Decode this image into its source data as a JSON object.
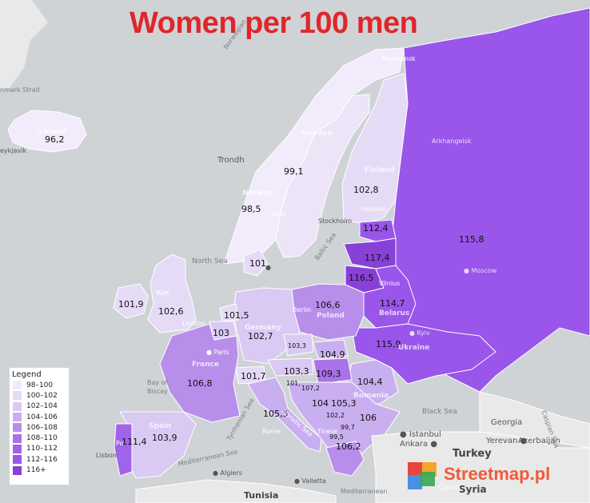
{
  "title": "Women per 100 men",
  "legend": {
    "title": "Legend",
    "classes": [
      {
        "label": "98–100",
        "color": "#f1ebfb"
      },
      {
        "label": "100–102",
        "color": "#e6dbf7"
      },
      {
        "label": "102–104",
        "color": "#dac9f3"
      },
      {
        "label": "104–106",
        "color": "#c9aff0"
      },
      {
        "label": "106–108",
        "color": "#b88eeb"
      },
      {
        "label": "108–110",
        "color": "#a972ea"
      },
      {
        "label": "110–112",
        "color": "#a063ea"
      },
      {
        "label": "112–116",
        "color": "#9a55ea"
      },
      {
        "label": "116+",
        "color": "#8840d9"
      }
    ]
  },
  "values": {
    "iceland": "96,2",
    "sweden": "99,1",
    "norway": "98,5",
    "finland": "102,8",
    "russia": "115,8",
    "estonia": "112,4",
    "latvia": "117,4",
    "lithuania": "116,5",
    "denmark": "101",
    "ireland": "101,9",
    "uk": "102,6",
    "netherlands": "101,5",
    "belgium": "103",
    "germany": "102,7",
    "poland": "106,6",
    "belarus": "114,7",
    "ukraine": "115,9",
    "czechia": "103,3",
    "slovakia": "104,9",
    "austria": "103,3",
    "hungary": "109,3",
    "slovenia": "101,",
    "croatia": "107,2",
    "moldova": "104,4",
    "france": "106,8",
    "switzerland": "101,7",
    "italy": "105,5",
    "bosnia": "104",
    "serbia": "105,3",
    "montenegro": "102,2",
    "romania_bulgaria": "106",
    "kosovo": "99,7",
    "albania": "99,5",
    "greece": "106,2",
    "spain": "103,9",
    "portugal": "111,4"
  },
  "countries": {
    "iceland": "Iceland",
    "sweden": "Sweden",
    "norway": "Norway",
    "finland": "Finland",
    "poland": "Poland",
    "germany": "Germany",
    "france": "France",
    "spain": "Spain",
    "belarus": "Belarus",
    "ukraine": "Ukraine",
    "romania": "Romania",
    "kingdom": "Kin"
  },
  "places": {
    "reykjavik": "eykjavík",
    "trondheim": "Trondh",
    "oslo": "Oslo",
    "stockholm": "Stockholm",
    "helsinki": "Helsinki",
    "murmansk": "Murmansk",
    "arkhangelsk": "Arkhangelsk",
    "moscow": "● Moscow",
    "kyiv": "● Kyiv",
    "berlin": "Berlin",
    "paris": "● Paris",
    "london": "London",
    "copenhagen": "●",
    "vilnius": "Vilnius",
    "rome": "Rome",
    "istanbul": "● Istanbul",
    "ankara": "Ankara ●",
    "yerevan": "Yerevan ●",
    "azerbaijan": "Azerbaijan",
    "georgia": "Georgia",
    "turkey": "Turkey",
    "syria": "Syria",
    "cyprus": "Cyprus",
    "algiers": "● Algiers",
    "valletta": "● Valletta",
    "tunisia": "Tunisia",
    "lisbon": "Lisbon",
    "tirane": "Tirane",
    "por": "Po"
  },
  "seas": {
    "denmark_strait": "nmark Strait",
    "norwegian_sea": "Norwegian",
    "north_sea": "North Sea",
    "baltic_sea": "Baltic Sea",
    "bay_of_biscay_1": "Bay of",
    "bay_of_biscay_2": "Biscay",
    "black_sea": "Black Sea",
    "caspian_sea": "Caspian Sea",
    "adriatic_sea": "Adriatic Sea",
    "tyrrhenian_sea": "Tyrrhenian Sea",
    "mediterranean_sea_1": "Mediterranean Sea",
    "mediterranean_sea_2": "Mediterranean"
  },
  "brand": "Streetmap.pl"
}
